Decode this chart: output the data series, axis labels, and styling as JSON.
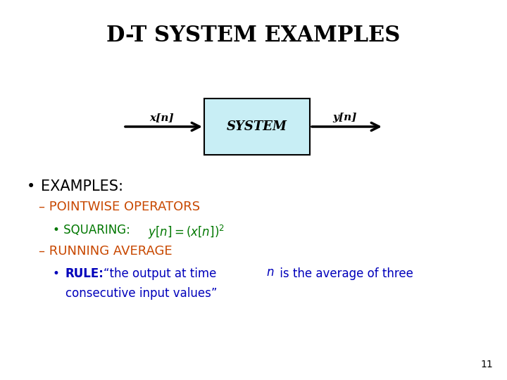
{
  "title": "D-T SYSTEM EXAMPLES",
  "title_fontsize": 22,
  "title_color": "#000000",
  "background_color": "#ffffff",
  "box_facecolor": "#c8eef5",
  "box_edgecolor": "#000000",
  "box_text": "SYSTEM",
  "input_label": "x[n]",
  "output_label": "y[n]",
  "bullet1_color": "#000000",
  "dash1_color": "#c84800",
  "sub_bullet1_color": "#007700",
  "dash2_color": "#c84800",
  "sub_bullet2_color": "#0000bb",
  "page_number": "11"
}
